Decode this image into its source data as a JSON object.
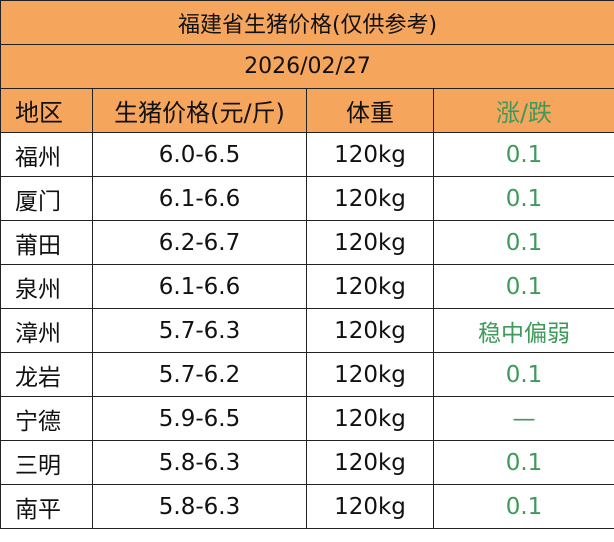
{
  "header": {
    "title": "福建省生猪价格(仅供参考)",
    "date": "2026/02/27"
  },
  "table": {
    "columns": [
      "地区",
      "生猪价格(元/斤)",
      "体重",
      "涨/跌"
    ],
    "rows": [
      [
        "福州",
        "6.0-6.5",
        "120kg",
        "0.1"
      ],
      [
        "厦门",
        "6.1-6.6",
        "120kg",
        "0.1"
      ],
      [
        "莆田",
        "6.2-6.7",
        "120kg",
        "0.1"
      ],
      [
        "泉州",
        "6.1-6.6",
        "120kg",
        "0.1"
      ],
      [
        "漳州",
        "5.7-6.3",
        "120kg",
        "稳中偏弱"
      ],
      [
        "龙岩",
        "5.7-6.2",
        "120kg",
        "0.1"
      ],
      [
        "宁德",
        "5.9-6.5",
        "120kg",
        "—"
      ],
      [
        "三明",
        "5.8-6.3",
        "120kg",
        "0.1"
      ],
      [
        "南平",
        "5.8-6.3",
        "120kg",
        "0.1"
      ]
    ]
  }
}
